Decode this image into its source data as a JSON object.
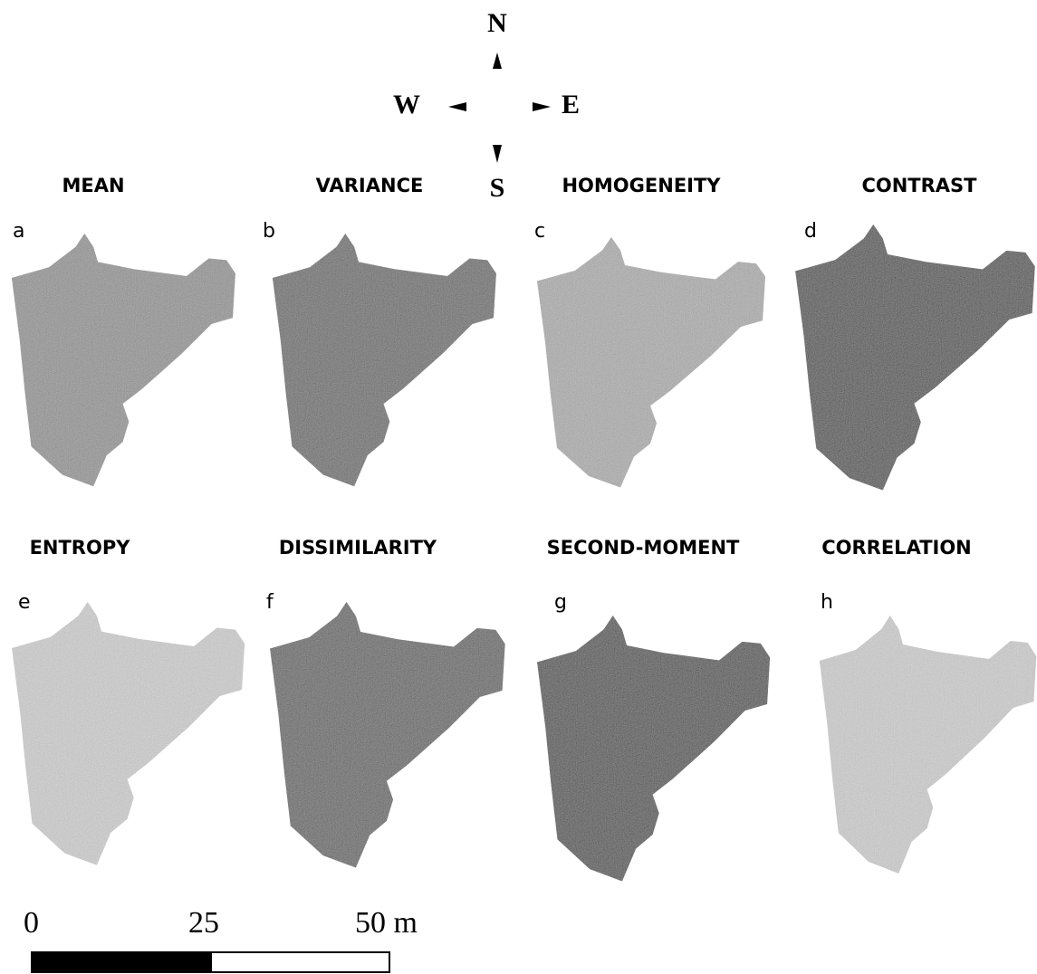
{
  "compass": {
    "north": "N",
    "south": "S",
    "west": "W",
    "east": "E"
  },
  "panels": [
    {
      "letter": "a",
      "title": "MEAN"
    },
    {
      "letter": "b",
      "title": "VARIANCE"
    },
    {
      "letter": "c",
      "title": "HOMOGENEITY"
    },
    {
      "letter": "d",
      "title": "CONTRAST"
    },
    {
      "letter": "e",
      "title": "ENTROPY"
    },
    {
      "letter": "f",
      "title": "DISSIMILARITY"
    },
    {
      "letter": "g",
      "title": "SECOND-MOMENT"
    },
    {
      "letter": "h",
      "title": "CORRELATION"
    }
  ],
  "scale_bar": {
    "labels": [
      "0",
      "25",
      "50 m"
    ]
  }
}
